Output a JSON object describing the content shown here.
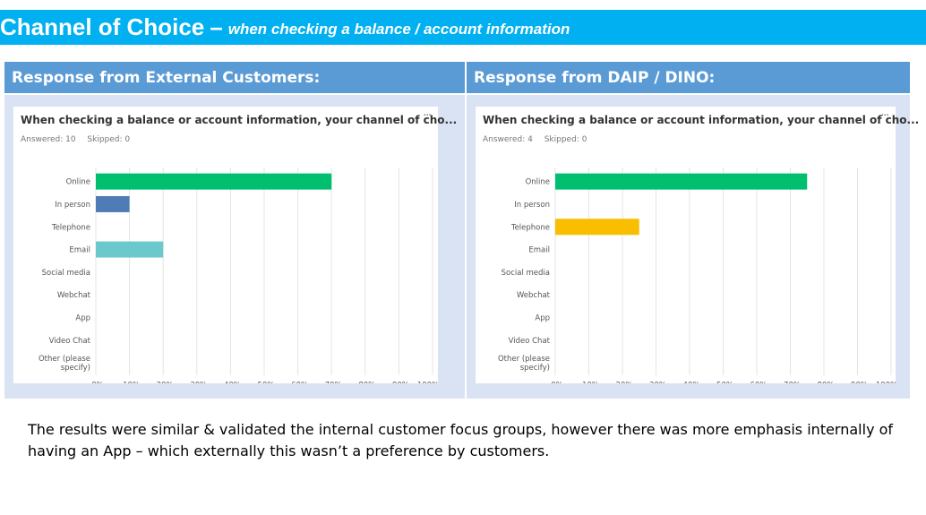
{
  "slide": {
    "title": "Channel of Choice",
    "title_sep": "–",
    "subtitle": "when checking a balance / account information",
    "footnote": "The results were similar & validated the internal customer focus groups, however there was more emphasis internally of having an App – which externally this wasn’t a preference by customers."
  },
  "panels": [
    {
      "header": "Response from External Customers:",
      "card_title": "When checking a balance or account information, your channel of cho...",
      "answered": "Answered: 10",
      "skipped": "Skipped: 0",
      "menu": "..."
    },
    {
      "header": "Response from DAIP / DINO:",
      "card_title": "When checking a balance or account information, your channel of cho...",
      "answered": "Answered: 4",
      "skipped": "Skipped: 0",
      "menu": "..."
    }
  ],
  "chart_data": [
    {
      "type": "bar",
      "orientation": "horizontal",
      "categories": [
        "Online",
        "In person",
        "Telephone",
        "Email",
        "Social media",
        "Webchat",
        "App",
        "Video Chat",
        "Other (please specify)"
      ],
      "values": [
        70,
        10,
        0,
        20,
        0,
        0,
        0,
        0,
        0
      ],
      "colors": [
        "#00bf6f",
        "#507cb6",
        "#507cb6",
        "#6bc8cd",
        "#6bc8cd",
        "#6bc8cd",
        "#6bc8cd",
        "#6bc8cd",
        "#6bc8cd"
      ],
      "x_ticks": [
        "0%",
        "10%",
        "20%",
        "30%",
        "40%",
        "50%",
        "60%",
        "70%",
        "80%",
        "90%",
        "100%"
      ],
      "xlim": [
        0,
        100
      ],
      "grid": true
    },
    {
      "type": "bar",
      "orientation": "horizontal",
      "categories": [
        "Online",
        "In person",
        "Telephone",
        "Email",
        "Social media",
        "Webchat",
        "App",
        "Video Chat",
        "Other (please specify)"
      ],
      "values": [
        75,
        0,
        25,
        0,
        0,
        0,
        0,
        0,
        0
      ],
      "colors": [
        "#00bf6f",
        "#507cb6",
        "#f9be00",
        "#6bc8cd",
        "#6bc8cd",
        "#6bc8cd",
        "#6bc8cd",
        "#6bc8cd",
        "#6bc8cd"
      ],
      "x_ticks": [
        "0%",
        "10%",
        "20%",
        "30%",
        "40%",
        "50%",
        "60%",
        "70%",
        "80%",
        "90%",
        "100%"
      ],
      "xlim": [
        0,
        100
      ],
      "grid": true
    }
  ]
}
